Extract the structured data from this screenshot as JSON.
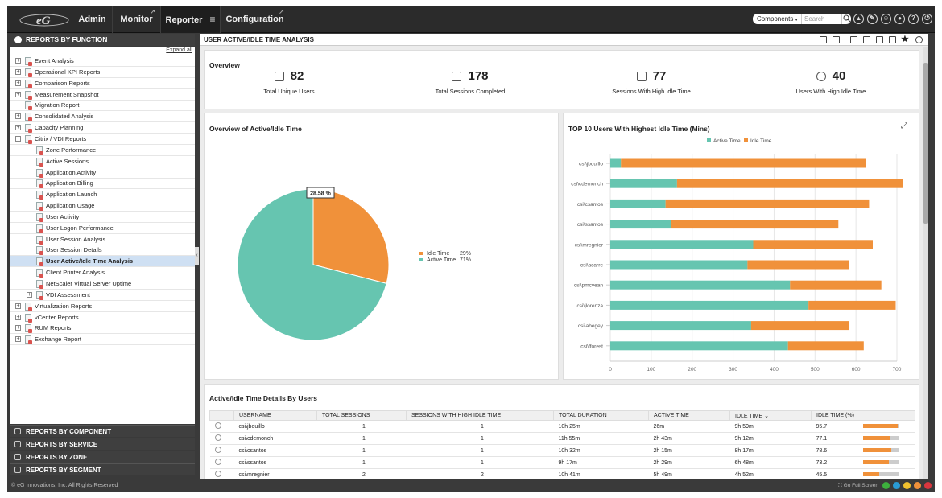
{
  "nav": {
    "tabs": [
      {
        "label": "Admin"
      },
      {
        "label": "Monitor"
      },
      {
        "label": "Reporter"
      },
      {
        "label": "Configuration"
      }
    ],
    "component_select": "Components",
    "search_placeholder": "Search"
  },
  "sidebar": {
    "header": "REPORTS BY FUNCTION",
    "expand_all": "Expand all",
    "items": [
      {
        "label": "Event Analysis"
      },
      {
        "label": "Operational KPI Reports"
      },
      {
        "label": "Comparison Reports"
      },
      {
        "label": "Measurement Snapshot"
      },
      {
        "label": "Migration Report"
      },
      {
        "label": "Consolidated Analysis"
      },
      {
        "label": "Capacity Planning"
      },
      {
        "label": "Citrix / VDI Reports"
      },
      {
        "label": "Zone Performance"
      },
      {
        "label": "Active Sessions"
      },
      {
        "label": "Application Activity"
      },
      {
        "label": "Application Billing"
      },
      {
        "label": "Application Launch"
      },
      {
        "label": "Application Usage"
      },
      {
        "label": "User Activity"
      },
      {
        "label": "User Logon Performance"
      },
      {
        "label": "User Session Analysis"
      },
      {
        "label": "User Session Details"
      },
      {
        "label": "User Active/Idle Time Analysis"
      },
      {
        "label": "Client Printer Analysis"
      },
      {
        "label": "NetScaler Virtual Server Uptime"
      },
      {
        "label": "VDI Assessment"
      },
      {
        "label": "Virtualization Reports"
      },
      {
        "label": "vCenter Reports"
      },
      {
        "label": "RUM Reports"
      },
      {
        "label": "Exchange Report"
      }
    ],
    "bottom_sections": [
      {
        "label": "REPORTS BY COMPONENT"
      },
      {
        "label": "REPORTS BY SERVICE"
      },
      {
        "label": "REPORTS BY ZONE"
      },
      {
        "label": "REPORTS BY SEGMENT"
      }
    ]
  },
  "status": {
    "copyright": "© eG Innovations, Inc. All Rights Reserved",
    "full_screen": "Go Full Screen"
  },
  "main": {
    "title": "USER ACTIVE/IDLE TIME ANALYSIS",
    "overview": {
      "title": "Overview",
      "kpis": [
        {
          "value": "82",
          "label": "Total Unique Users"
        },
        {
          "value": "178",
          "label": "Total Sessions Completed"
        },
        {
          "value": "77",
          "label": "Sessions With High Idle Time"
        },
        {
          "value": "40",
          "label": "Users With High Idle Time"
        }
      ]
    },
    "pie_card": {
      "title": "Overview of Active/Idle Time"
    },
    "bar_card": {
      "title": "TOP 10 Users With Highest Idle Time (Mins)"
    },
    "details": {
      "title": "Active/Idle Time Details By Users",
      "columns": [
        "USERNAME",
        "TOTAL SESSIONS",
        "SESSIONS WITH HIGH IDLE TIME",
        "TOTAL DURATION",
        "ACTIVE TIME",
        "IDLE TIME",
        "IDLE TIME (%)"
      ],
      "rows": [
        {
          "user": "csi\\jbouillo",
          "sessions": "1",
          "high": "1",
          "duration": "10h 25m",
          "active": "26m",
          "idle": "9h 59m",
          "pct": "95.7"
        },
        {
          "user": "csi\\cdemonch",
          "sessions": "1",
          "high": "1",
          "duration": "11h 55m",
          "active": "2h 43m",
          "idle": "9h 12m",
          "pct": "77.1"
        },
        {
          "user": "csi\\csantos",
          "sessions": "1",
          "high": "1",
          "duration": "10h 32m",
          "active": "2h 15m",
          "idle": "8h 17m",
          "pct": "78.6"
        },
        {
          "user": "csi\\ssantos",
          "sessions": "1",
          "high": "1",
          "duration": "9h 17m",
          "active": "2h 29m",
          "idle": "6h 48m",
          "pct": "73.2"
        },
        {
          "user": "csi\\mregnier",
          "sessions": "2",
          "high": "2",
          "duration": "10h 41m",
          "active": "5h 49m",
          "idle": "4h 52m",
          "pct": "45.5"
        }
      ]
    }
  },
  "chart_data": [
    {
      "type": "pie",
      "title": "Overview of Active/Idle Time",
      "slices": [
        {
          "name": "Idle Time",
          "value": 29,
          "label": "29%",
          "color": "#f0913a"
        },
        {
          "name": "Active Time",
          "value": 71,
          "label": "71%",
          "color": "#66c5b0"
        }
      ],
      "tooltip": "28.58 %",
      "legend_position": "right"
    },
    {
      "type": "bar",
      "orientation": "horizontal",
      "stacked": true,
      "title": "TOP 10 Users With Highest Idle Time (Mins)",
      "categories": [
        "csi\\jbouillo",
        "csi\\cdemonch",
        "csi\\csantos",
        "csi\\ssantos",
        "csi\\mregnier",
        "csi\\acarre",
        "csi\\pmcvean",
        "csi\\jlorenza",
        "csi\\abegey",
        "csi\\fforest"
      ],
      "series": [
        {
          "name": "Active Time",
          "color": "#66c5b0",
          "values": [
            26,
            163,
            135,
            149,
            349,
            335,
            439,
            484,
            344,
            434
          ]
        },
        {
          "name": "Idle Time",
          "color": "#f0913a",
          "values": [
            599,
            552,
            497,
            408,
            292,
            248,
            223,
            213,
            240,
            185
          ]
        }
      ],
      "xlim": [
        0,
        700
      ],
      "xticks": [
        "0",
        "100",
        "200",
        "300",
        "400",
        "500",
        "600",
        "700"
      ],
      "legend_position": "top",
      "grid": true
    }
  ]
}
